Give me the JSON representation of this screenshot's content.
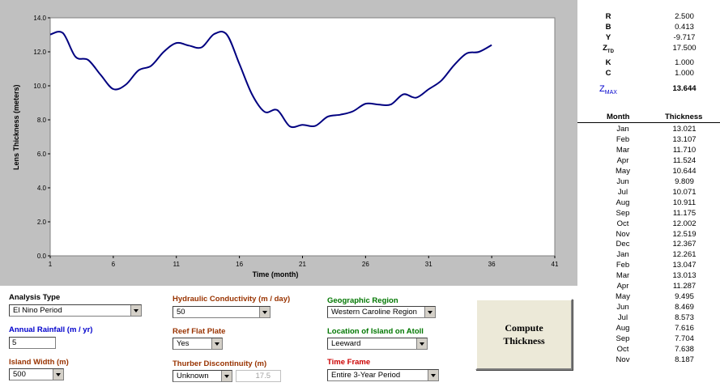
{
  "chart_data": {
    "type": "line",
    "ylabel": "Lens Thickness (meters)",
    "xlabel": "Time (month)",
    "xlim": [
      1,
      41
    ],
    "ylim": [
      0,
      14
    ],
    "x_ticks": [
      "1",
      "6",
      "11",
      "16",
      "21",
      "26",
      "31",
      "36",
      "41"
    ],
    "y_ticks": [
      "0.0",
      "2.0",
      "4.0",
      "6.0",
      "8.0",
      "10.0",
      "12.0",
      "14.0"
    ],
    "line_color": "#000080",
    "x": [
      1,
      2,
      3,
      4,
      5,
      6,
      7,
      8,
      9,
      10,
      11,
      12,
      13,
      14,
      15,
      16,
      17,
      18,
      19,
      20,
      21,
      22,
      23,
      24,
      25,
      26,
      27,
      28,
      29,
      30,
      31,
      32,
      33,
      34,
      35,
      36
    ],
    "y": [
      13.021,
      13.107,
      11.71,
      11.524,
      10.644,
      9.809,
      10.071,
      10.911,
      11.175,
      12.002,
      12.519,
      12.367,
      12.261,
      13.047,
      13.013,
      11.287,
      9.495,
      8.469,
      8.573,
      7.616,
      7.704,
      7.638,
      8.187,
      8.3,
      8.5,
      8.95,
      8.9,
      8.9,
      9.5,
      9.3,
      9.8,
      10.3,
      11.2,
      11.9,
      12.0,
      12.4
    ]
  },
  "controls": {
    "analysis_type": {
      "label": "Analysis Type",
      "value": "El Nino Period"
    },
    "annual_rainfall": {
      "label": "Annual Rainfall (m / yr)",
      "value": "5"
    },
    "island_width": {
      "label": "Island Width (m)",
      "value": "500"
    },
    "hydraulic_conductivity": {
      "label": "Hydraulic Conductivity (m / day)",
      "value": "50"
    },
    "reef_flat_plate": {
      "label": "Reef Flat Plate",
      "value": "Yes"
    },
    "thurber": {
      "label": "Thurber Discontinuity (m)",
      "value": "Unknown",
      "depth": "17.5"
    },
    "geographic_region": {
      "label": "Geographic Region",
      "value": "Western Caroline Region"
    },
    "location": {
      "label": "Location of Island on Atoll",
      "value": "Leeward"
    },
    "time_frame": {
      "label": "Time Frame",
      "value": "Entire 3-Year Period"
    },
    "compute_button": {
      "line1": "Compute",
      "line2": "Thickness"
    }
  },
  "params": [
    {
      "key": "R",
      "value": "2.500"
    },
    {
      "key": "B",
      "value": "0.413"
    },
    {
      "key": "Y",
      "value": "-9.717"
    },
    {
      "key": "ZTD",
      "key_main": "Z",
      "key_sub": "TD",
      "value": "17.500"
    },
    {
      "key": "K",
      "value": "1.000"
    },
    {
      "key": "C",
      "value": "1.000"
    }
  ],
  "zmax": {
    "key_main": "Z",
    "key_sub": "MAX",
    "value": "13.644"
  },
  "table": {
    "headers": {
      "month": "Month",
      "thickness": "Thickness"
    },
    "rows": [
      {
        "month": "Jan",
        "thickness": "13.021"
      },
      {
        "month": "Feb",
        "thickness": "13.107"
      },
      {
        "month": "Mar",
        "thickness": "11.710"
      },
      {
        "month": "Apr",
        "thickness": "11.524"
      },
      {
        "month": "May",
        "thickness": "10.644"
      },
      {
        "month": "Jun",
        "thickness": "9.809"
      },
      {
        "month": "Jul",
        "thickness": "10.071"
      },
      {
        "month": "Aug",
        "thickness": "10.911"
      },
      {
        "month": "Sep",
        "thickness": "11.175"
      },
      {
        "month": "Oct",
        "thickness": "12.002"
      },
      {
        "month": "Nov",
        "thickness": "12.519"
      },
      {
        "month": "Dec",
        "thickness": "12.367"
      },
      {
        "month": "Jan",
        "thickness": "12.261"
      },
      {
        "month": "Feb",
        "thickness": "13.047"
      },
      {
        "month": "Mar",
        "thickness": "13.013"
      },
      {
        "month": "Apr",
        "thickness": "11.287"
      },
      {
        "month": "May",
        "thickness": "9.495"
      },
      {
        "month": "Jun",
        "thickness": "8.469"
      },
      {
        "month": "Jul",
        "thickness": "8.573"
      },
      {
        "month": "Aug",
        "thickness": "7.616"
      },
      {
        "month": "Sep",
        "thickness": "7.704"
      },
      {
        "month": "Oct",
        "thickness": "7.638"
      },
      {
        "month": "Nov",
        "thickness": "8.187"
      }
    ]
  }
}
